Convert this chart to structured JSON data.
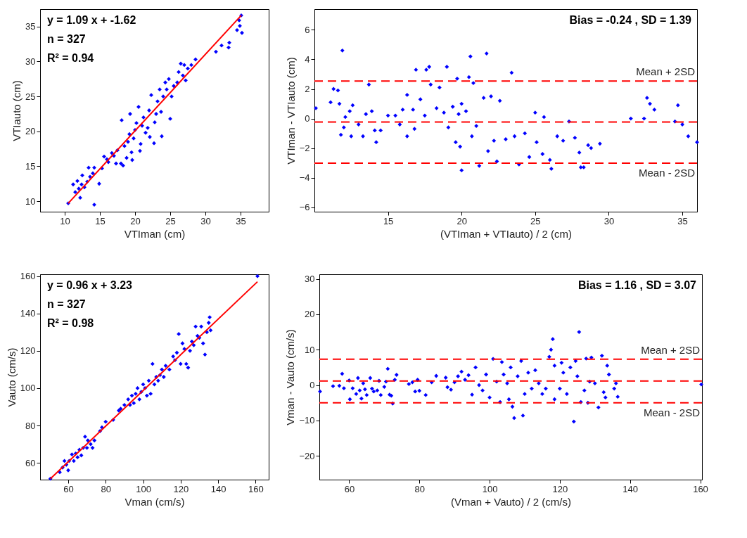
{
  "chart_data": [
    {
      "type": "scatter",
      "xlabel": "VTIman (cm)",
      "ylabel": "VTIauto (cm)",
      "xlim": [
        6.5,
        39
      ],
      "ylim": [
        8.5,
        37.5
      ],
      "xticks": [
        10,
        15,
        20,
        25,
        30,
        35
      ],
      "yticks": [
        10,
        15,
        20,
        25,
        30,
        35
      ],
      "annotations": [
        "y = 1.09 x + -1.62",
        "n = 327",
        "R² = 0.94"
      ],
      "series": [
        {
          "type": "scatter",
          "marker": "diamond",
          "color": "#0000ff",
          "x": [
            10.5,
            11.2,
            11.5,
            11.8,
            12.0,
            12.2,
            12.4,
            12.5,
            12.8,
            13.2,
            13.4,
            13.6,
            14.0,
            14.2,
            14.2,
            14.9,
            15.3,
            15.6,
            16.0,
            16.2,
            16.7,
            17.0,
            17.3,
            17.5,
            18.0,
            18.1,
            18.3,
            18.5,
            18.8,
            19.0,
            19.2,
            19.3,
            19.5,
            19.6,
            19.8,
            20.0,
            20.2,
            20.5,
            20.7,
            20.8,
            21.0,
            21.2,
            21.5,
            21.8,
            22.0,
            22.1,
            22.3,
            22.7,
            22.8,
            23.0,
            23.2,
            23.5,
            23.7,
            23.8,
            24.0,
            24.3,
            24.5,
            24.8,
            25.0,
            25.2,
            25.5,
            26.0,
            26.2,
            26.5,
            26.8,
            27.0,
            27.2,
            27.5,
            28.0,
            28.6,
            31.5,
            32.3,
            33.3,
            33.4,
            34.5,
            34.8,
            34.9,
            35.1,
            35.2
          ],
          "values": [
            9.7,
            12.4,
            11.3,
            12.9,
            11.8,
            10.5,
            12.4,
            13.7,
            12.0,
            12.8,
            14.8,
            13.5,
            14.0,
            9.5,
            14.8,
            12.5,
            14.7,
            16.4,
            16.0,
            15.6,
            16.9,
            16.5,
            15.4,
            17.3,
            15.4,
            21.6,
            15.1,
            17.9,
            16.2,
            18.5,
            19.6,
            22.5,
            17.0,
            15.9,
            19.0,
            20.2,
            21.2,
            23.5,
            17.2,
            18.2,
            20.8,
            22.0,
            19.8,
            20.5,
            23.0,
            19.2,
            25.2,
            18.3,
            21.3,
            22.5,
            24.3,
            26.0,
            22.8,
            19.3,
            25.0,
            27.0,
            26.0,
            27.5,
            21.8,
            25.0,
            26.5,
            27.0,
            28.5,
            29.7,
            28.0,
            29.5,
            27.3,
            29.0,
            29.5,
            30.3,
            31.4,
            32.3,
            32.0,
            32.7,
            34.5,
            35.9,
            35.1,
            36.6,
            34.1
          ]
        },
        {
          "type": "line",
          "line_style": "solid",
          "color": "#ff0000",
          "x": [
            10.5,
            35.1
          ],
          "values": [
            9.7,
            36.6
          ]
        }
      ]
    },
    {
      "type": "scatter",
      "xlabel": "(VTIman + VTIauto) / 2 (cm)",
      "ylabel": "VTIman - VTIauto (cm)",
      "xlim": [
        10,
        36
      ],
      "ylim": [
        -6.3,
        7.4
      ],
      "xticks": [
        15,
        20,
        25,
        30,
        35
      ],
      "yticks": [
        -6,
        -4,
        -2,
        0,
        2,
        4,
        6
      ],
      "annotations": [
        "Bias = -0.24 , SD = 1.39"
      ],
      "ref_lines": [
        {
          "axis": "y",
          "value": 2.54,
          "label": "Mean + 2SD",
          "color": "#ff0000",
          "line_style": "dashed"
        },
        {
          "axis": "y",
          "value": -0.24,
          "label": null,
          "color": "#ff0000",
          "line_style": "dashed"
        },
        {
          "axis": "y",
          "value": -3.02,
          "label": "Mean - 2SD",
          "color": "#ff0000",
          "line_style": "dashed"
        }
      ],
      "series": [
        {
          "type": "scatter",
          "marker": "diamond",
          "color": "#0000ff",
          "x": [
            10.1,
            11.1,
            11.3,
            11.6,
            11.7,
            11.8,
            11.9,
            12.0,
            12.1,
            12.4,
            12.5,
            12.6,
            13.0,
            13.3,
            13.5,
            13.7,
            13.9,
            14.1,
            14.2,
            14.5,
            15.0,
            15.5,
            15.8,
            16.0,
            16.3,
            16.3,
            16.7,
            16.8,
            16.9,
            17.2,
            17.5,
            17.6,
            17.8,
            17.9,
            18.3,
            18.5,
            18.8,
            19.0,
            19.1,
            19.4,
            19.6,
            19.7,
            19.8,
            19.9,
            20.0,
            20.0,
            20.3,
            20.5,
            20.6,
            20.7,
            20.8,
            21.0,
            21.2,
            21.5,
            21.7,
            21.8,
            22.0,
            22.2,
            22.4,
            22.6,
            23.0,
            23.4,
            23.6,
            23.9,
            24.3,
            24.6,
            25.0,
            25.1,
            25.5,
            25.6,
            26.0,
            26.1,
            26.5,
            26.9,
            27.3,
            27.7,
            28.0,
            28.1,
            28.3,
            28.6,
            28.8,
            29.4,
            31.5,
            32.4,
            32.6,
            32.8,
            33.1,
            34.5,
            34.7,
            35.0,
            35.4,
            36.0
          ],
          "values": [
            0.7,
            1.1,
            2.0,
            1.9,
            1.0,
            -1.1,
            4.6,
            -0.6,
            0.1,
            0.5,
            -1.2,
            0.9,
            -0.4,
            -1.2,
            0.3,
            2.3,
            0.5,
            -0.8,
            -1.6,
            -0.8,
            0.2,
            0.2,
            -0.4,
            0.6,
            -1.2,
            1.6,
            0.6,
            -0.7,
            3.3,
            1.3,
            0.2,
            3.3,
            3.5,
            2.3,
            0.7,
            2.1,
            0.4,
            3.5,
            -0.6,
            0.8,
            -1.6,
            2.7,
            0.3,
            -1.9,
            -3.5,
            1.0,
            0.5,
            2.8,
            4.2,
            -1.2,
            2.4,
            -0.5,
            -3.2,
            1.4,
            4.4,
            -2.2,
            1.5,
            -1.5,
            -2.9,
            1.2,
            -1.4,
            3.1,
            -1.2,
            -3.1,
            -1.0,
            -2.6,
            0.4,
            -1.6,
            -2.4,
            0.1,
            -2.8,
            -3.4,
            -1.2,
            -1.5,
            -0.2,
            -1.3,
            -2.3,
            -3.3,
            -3.3,
            -1.8,
            -2.0,
            -1.7,
            0.0,
            0.0,
            1.4,
            1.0,
            0.6,
            -0.2,
            0.9,
            -0.4,
            -1.2,
            -1.6
          ]
        }
      ]
    },
    {
      "type": "scatter",
      "xlabel": "Vman (cm/s)",
      "ylabel": "Vauto (cm/s)",
      "xlim": [
        45,
        167
      ],
      "ylim": [
        51,
        161
      ],
      "xticks": [
        60,
        80,
        100,
        120,
        140,
        160
      ],
      "yticks": [
        60,
        80,
        100,
        120,
        140,
        160
      ],
      "annotations": [
        "y = 0.96 x + 3.23",
        "n = 327",
        "R² = 0.98"
      ],
      "series": [
        {
          "type": "scatter",
          "marker": "diamond",
          "color": "#0000ff",
          "x": [
            50.5,
            55.5,
            57,
            58,
            59,
            60,
            60.5,
            62,
            63,
            64,
            65,
            66,
            67,
            68,
            69,
            70,
            70.5,
            72,
            73,
            74,
            77,
            78,
            80,
            84,
            87,
            88,
            90,
            92,
            93,
            94,
            95,
            96,
            97,
            98,
            99,
            100,
            101,
            102,
            103,
            104,
            105,
            106,
            107,
            108,
            109,
            110,
            111,
            112,
            114,
            116,
            117,
            118,
            119,
            120,
            121,
            122,
            123,
            124,
            125,
            126,
            127,
            128,
            129,
            130,
            131,
            132,
            133,
            134,
            135,
            135.5,
            136,
            161
          ],
          "values": [
            51.5,
            55,
            57.5,
            61,
            59,
            56,
            61,
            64.5,
            61,
            65,
            63,
            67,
            64,
            68,
            74,
            68,
            72,
            70,
            68,
            72,
            77,
            79,
            82,
            83,
            88,
            89,
            91,
            94,
            91,
            96,
            92,
            97,
            100,
            94,
            98,
            102,
            100,
            96,
            104,
            97,
            113,
            102,
            106,
            104,
            107,
            110,
            106,
            112,
            110,
            117,
            115,
            119,
            129,
            113,
            124,
            121,
            113,
            111,
            120,
            125,
            123,
            133,
            128,
            127,
            133,
            124,
            118,
            130,
            135,
            138,
            131,
            160
          ]
        },
        {
          "type": "line",
          "line_style": "solid",
          "color": "#ff0000",
          "x": [
            50.5,
            161
          ],
          "values": [
            51.5,
            157
          ]
        }
      ]
    },
    {
      "type": "scatter",
      "xlabel": "(Vman + Vauto) / 2 (cm/s)",
      "ylabel": "Vman - Vauto (cm/s)",
      "xlim": [
        51.5,
        160.5
      ],
      "ylim": [
        -26.7,
        31.3
      ],
      "xticks": [
        60,
        80,
        100,
        120,
        140,
        160
      ],
      "yticks": [
        -20,
        -10,
        0,
        10,
        20,
        30
      ],
      "annotations": [
        "Bias = 1.16 , SD = 3.07"
      ],
      "ref_lines": [
        {
          "axis": "y",
          "value": 7.3,
          "label": "Mean + 2SD",
          "color": "#ff0000",
          "line_style": "dashed"
        },
        {
          "axis": "y",
          "value": 1.16,
          "label": null,
          "color": "#ff0000",
          "line_style": "dashed"
        },
        {
          "axis": "y",
          "value": -4.98,
          "label": "Mean - 2SD",
          "color": "#ff0000",
          "line_style": "dashed"
        }
      ],
      "series": [
        {
          "type": "scatter",
          "marker": "diamond",
          "color": "#0000ff",
          "x": [
            51.7,
            55.4,
            57.2,
            58.0,
            58.5,
            60,
            60.2,
            61,
            62,
            62.5,
            63,
            63.5,
            64,
            64.5,
            65,
            66,
            66.5,
            67,
            68,
            68.5,
            69,
            70,
            70.5,
            71,
            71.5,
            72,
            72.4,
            73,
            73.5,
            77,
            78,
            78.8,
            79.5,
            80,
            81.8,
            83.5,
            84.8,
            87.5,
            88,
            89,
            90,
            91,
            92,
            93,
            94,
            95,
            96,
            97,
            98,
            99,
            100,
            101,
            102,
            103,
            103.5,
            104,
            105,
            105.5,
            106,
            106.5,
            107,
            108,
            109,
            109.5,
            110,
            111,
            112,
            113,
            114,
            115,
            116,
            117,
            117.5,
            118,
            118.5,
            118.5,
            120,
            120.5,
            121,
            122,
            123,
            124,
            124.5,
            125,
            125.5,
            126,
            127,
            127.5,
            128,
            128.5,
            129,
            130,
            131,
            132,
            132.5,
            133,
            133.5,
            134,
            135.5,
            136,
            136.5,
            160.3
          ],
          "values": [
            -1.8,
            -0.3,
            -0.2,
            3.2,
            -0.9,
            1.3,
            -4.0,
            -0.9,
            -2.5,
            2.0,
            -1.5,
            -3.8,
            0.5,
            -1.2,
            -2.8,
            2.0,
            -1.0,
            -1.8,
            -1.5,
            1.2,
            -2.8,
            -0.5,
            1.0,
            4.6,
            -2.7,
            -3.0,
            -5.2,
            1.5,
            2.9,
            0.3,
            0.8,
            -1.8,
            1.5,
            -1.6,
            -2.8,
            0.8,
            2.6,
            2.1,
            -0.6,
            -1.3,
            0.8,
            2.5,
            3.8,
            1.5,
            2.8,
            -2.7,
            5.0,
            0,
            -1.5,
            3.0,
            -3.5,
            7.4,
            1.0,
            -4.8,
            6.5,
            3.0,
            0.5,
            -4.0,
            5.0,
            -6.1,
            -9.3,
            2.5,
            6.8,
            -8.6,
            -2.5,
            3.5,
            -1.0,
            4.2,
            0.5,
            -2.5,
            -1.0,
            8.0,
            10.0,
            13.0,
            -4.0,
            5.5,
            -1.0,
            6.3,
            3.5,
            -2.5,
            5.0,
            -10.3,
            6.8,
            2.5,
            15.0,
            -4.8,
            -1.5,
            7.5,
            -5.0,
            1.0,
            7.8,
            0.5,
            -6.3,
            8.3,
            -2.0,
            -3.5,
            5.5,
            3.0,
            -1.0,
            0.5,
            -3.3,
            0.2
          ]
        }
      ]
    }
  ]
}
